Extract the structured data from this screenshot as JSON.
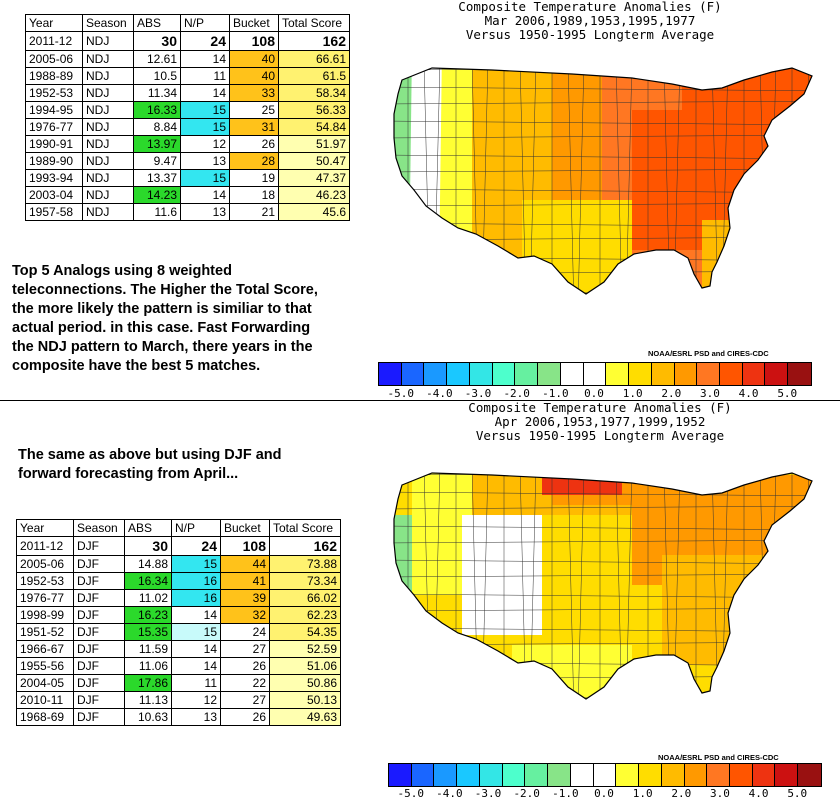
{
  "table1": {
    "headers": [
      "Year",
      "Season",
      "ABS",
      "N/P",
      "Bucket",
      "Total Score"
    ],
    "reference": {
      "year": "2011-12",
      "season": "NDJ",
      "abs": "30",
      "np": "24",
      "bucket": "108",
      "total": "162"
    },
    "rows": [
      {
        "year": "2005-06",
        "season": "NDJ",
        "abs": "12.61",
        "np": "14",
        "bucket": "40",
        "total": "66.61",
        "abs_bg": "",
        "np_bg": "",
        "bucket_bg": "orange",
        "total_bg": "yellow"
      },
      {
        "year": "1988-89",
        "season": "NDJ",
        "abs": "10.5",
        "np": "11",
        "bucket": "40",
        "total": "61.5",
        "abs_bg": "",
        "np_bg": "",
        "bucket_bg": "orange",
        "total_bg": "yellow"
      },
      {
        "year": "1952-53",
        "season": "NDJ",
        "abs": "11.34",
        "np": "14",
        "bucket": "33",
        "total": "58.34",
        "abs_bg": "",
        "np_bg": "",
        "bucket_bg": "orange",
        "total_bg": "yellow"
      },
      {
        "year": "1994-95",
        "season": "NDJ",
        "abs": "16.33",
        "np": "15",
        "bucket": "25",
        "total": "56.33",
        "abs_bg": "green",
        "np_bg": "cyan",
        "bucket_bg": "",
        "total_bg": "yellow"
      },
      {
        "year": "1976-77",
        "season": "NDJ",
        "abs": "8.84",
        "np": "15",
        "bucket": "31",
        "total": "54.84",
        "abs_bg": "",
        "np_bg": "cyan",
        "bucket_bg": "orange",
        "total_bg": "yellow"
      },
      {
        "year": "1990-91",
        "season": "NDJ",
        "abs": "13.97",
        "np": "12",
        "bucket": "26",
        "total": "51.97",
        "abs_bg": "green",
        "np_bg": "",
        "bucket_bg": "",
        "total_bg": "ltyel"
      },
      {
        "year": "1989-90",
        "season": "NDJ",
        "abs": "9.47",
        "np": "13",
        "bucket": "28",
        "total": "50.47",
        "abs_bg": "",
        "np_bg": "",
        "bucket_bg": "orange",
        "total_bg": "ltyel"
      },
      {
        "year": "1993-94",
        "season": "NDJ",
        "abs": "13.37",
        "np": "15",
        "bucket": "19",
        "total": "47.37",
        "abs_bg": "",
        "np_bg": "cyan",
        "bucket_bg": "",
        "total_bg": "ltyel"
      },
      {
        "year": "2003-04",
        "season": "NDJ",
        "abs": "14.23",
        "np": "14",
        "bucket": "18",
        "total": "46.23",
        "abs_bg": "green",
        "np_bg": "",
        "bucket_bg": "",
        "total_bg": "ltyel"
      },
      {
        "year": "1957-58",
        "season": "NDJ",
        "abs": "11.6",
        "np": "13",
        "bucket": "21",
        "total": "45.6",
        "abs_bg": "",
        "np_bg": "",
        "bucket_bg": "",
        "total_bg": "ltyel"
      }
    ]
  },
  "table2": {
    "headers": [
      "Year",
      "Season",
      "ABS",
      "N/P",
      "Bucket",
      "Total Score"
    ],
    "reference": {
      "year": "2011-12",
      "season": "DJF",
      "abs": "30",
      "np": "24",
      "bucket": "108",
      "total": "162"
    },
    "rows": [
      {
        "year": "2005-06",
        "season": "DJF",
        "abs": "14.88",
        "np": "15",
        "bucket": "44",
        "total": "73.88",
        "abs_bg": "",
        "np_bg": "cyan",
        "bucket_bg": "orange",
        "total_bg": "yellow"
      },
      {
        "year": "1952-53",
        "season": "DJF",
        "abs": "16.34",
        "np": "16",
        "bucket": "41",
        "total": "73.34",
        "abs_bg": "green",
        "np_bg": "cyan",
        "bucket_bg": "orange",
        "total_bg": "yellow"
      },
      {
        "year": "1976-77",
        "season": "DJF",
        "abs": "11.02",
        "np": "16",
        "bucket": "39",
        "total": "66.02",
        "abs_bg": "",
        "np_bg": "cyan",
        "bucket_bg": "orange",
        "total_bg": "yellow"
      },
      {
        "year": "1998-99",
        "season": "DJF",
        "abs": "16.23",
        "np": "14",
        "bucket": "32",
        "total": "62.23",
        "abs_bg": "green",
        "np_bg": "",
        "bucket_bg": "orange",
        "total_bg": "yellow"
      },
      {
        "year": "1951-52",
        "season": "DJF",
        "abs": "15.35",
        "np": "15",
        "bucket": "24",
        "total": "54.35",
        "abs_bg": "green",
        "np_bg": "ltcyan",
        "bucket_bg": "",
        "total_bg": "yellow"
      },
      {
        "year": "1966-67",
        "season": "DJF",
        "abs": "11.59",
        "np": "14",
        "bucket": "27",
        "total": "52.59",
        "abs_bg": "",
        "np_bg": "",
        "bucket_bg": "",
        "total_bg": "ltyel"
      },
      {
        "year": "1955-56",
        "season": "DJF",
        "abs": "11.06",
        "np": "14",
        "bucket": "26",
        "total": "51.06",
        "abs_bg": "",
        "np_bg": "",
        "bucket_bg": "",
        "total_bg": "ltyel"
      },
      {
        "year": "2004-05",
        "season": "DJF",
        "abs": "17.86",
        "np": "11",
        "bucket": "22",
        "total": "50.86",
        "abs_bg": "green",
        "np_bg": "",
        "bucket_bg": "",
        "total_bg": "ltyel"
      },
      {
        "year": "2010-11",
        "season": "DJF",
        "abs": "11.13",
        "np": "12",
        "bucket": "27",
        "total": "50.13",
        "abs_bg": "",
        "np_bg": "",
        "bucket_bg": "",
        "total_bg": "ltyel"
      },
      {
        "year": "1968-69",
        "season": "DJF",
        "abs": "10.63",
        "np": "13",
        "bucket": "26",
        "total": "49.63",
        "abs_bg": "",
        "np_bg": "",
        "bucket_bg": "",
        "total_bg": "ltyel"
      }
    ]
  },
  "note1": [
    "Top 5 Analogs using 8 weighted",
    "teleconnections. The Higher the Total Score,",
    "the more likely the pattern is similiar to that",
    "actual period. in this case. Fast Forwarding",
    "the NDJ pattern to March, there years in the",
    "composite have the best 5 matches."
  ],
  "note2": [
    "The same as above but using DJF and",
    "forward forecasting from April..."
  ],
  "map1": {
    "title": [
      "Composite Temperature Anomalies (F)",
      "Mar  2006,1989,1953,1995,1977",
      "Versus 1950-1995 Longterm Average"
    ],
    "credit": "NOAA/ESRL PSD and CIRES-CDC"
  },
  "map2": {
    "title": [
      "Composite Temperature Anomalies (F)",
      "Apr  2006,1953,1977,1999,1952",
      "Versus 1950-1995 Longterm Average"
    ],
    "credit": "NOAA/ESRL PSD and CIRES-CDC"
  },
  "colorbar": {
    "colors": [
      "#1a1aff",
      "#1a66ff",
      "#1a99ff",
      "#1ac8ff",
      "#33e6e6",
      "#4dffcc",
      "#66f0a0",
      "#88e488",
      "#ffffff",
      "#ffffff",
      "#ffff33",
      "#ffdd00",
      "#ffbb00",
      "#ff9900",
      "#ff7722",
      "#ff5500",
      "#ee3311",
      "#cc1111",
      "#991111"
    ],
    "ticks": [
      "-5.0",
      "-4.0",
      "-3.0",
      "-2.0",
      "-1.0",
      "0.0",
      "1.0",
      "2.0",
      "3.0",
      "4.0",
      "5.0"
    ]
  },
  "palette": {
    "green": "#2bd92b",
    "cyan": "#33e6f0",
    "ltcyan": "#c8fafa",
    "orange": "#ffc21a",
    "yellow": "#fff270",
    "ltyel": "#ffffb0"
  }
}
